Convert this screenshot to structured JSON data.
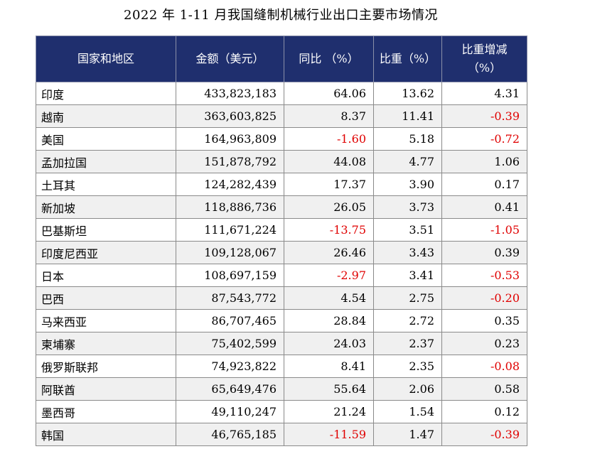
{
  "title": "2022 年 1-11 月我国缝制机械行业出口主要市场情况",
  "headers": [
    "国家和地区",
    "金额（美元）",
    "同比 （%）",
    "比重（%）",
    [
      "比重增减",
      "（%）"
    ]
  ],
  "colors": {
    "header_bg": "#1f2f6e",
    "negative": "#e00000",
    "stripe": "#f0f0f0"
  },
  "rows": [
    {
      "name": "印度",
      "amount": "433,823,183",
      "yoy": "64.06",
      "share": "13.62",
      "change": "4.31"
    },
    {
      "name": "越南",
      "amount": "363,603,825",
      "yoy": "8.37",
      "share": "11.41",
      "change": "-0.39"
    },
    {
      "name": "美国",
      "amount": "164,963,809",
      "yoy": "-1.60",
      "share": "5.18",
      "change": "-0.72"
    },
    {
      "name": "孟加拉国",
      "amount": "151,878,792",
      "yoy": "44.08",
      "share": "4.77",
      "change": "1.06"
    },
    {
      "name": "土耳其",
      "amount": "124,282,439",
      "yoy": "17.37",
      "share": "3.90",
      "change": "0.17"
    },
    {
      "name": "新加坡",
      "amount": "118,886,736",
      "yoy": "26.05",
      "share": "3.73",
      "change": "0.41"
    },
    {
      "name": "巴基斯坦",
      "amount": "111,671,224",
      "yoy": "-13.75",
      "share": "3.51",
      "change": "-1.05"
    },
    {
      "name": "印度尼西亚",
      "amount": "109,128,067",
      "yoy": "26.46",
      "share": "3.43",
      "change": "0.39"
    },
    {
      "name": "日本",
      "amount": "108,697,159",
      "yoy": "-2.97",
      "share": "3.41",
      "change": "-0.53"
    },
    {
      "name": "巴西",
      "amount": "87,543,772",
      "yoy": "4.54",
      "share": "2.75",
      "change": "-0.20"
    },
    {
      "name": "马来西亚",
      "amount": "86,707,465",
      "yoy": "28.84",
      "share": "2.72",
      "change": "0.35"
    },
    {
      "name": "柬埔寨",
      "amount": "75,402,599",
      "yoy": "24.03",
      "share": "2.37",
      "change": "0.23"
    },
    {
      "name": "俄罗斯联邦",
      "amount": "74,923,822",
      "yoy": "8.41",
      "share": "2.35",
      "change": "-0.08"
    },
    {
      "name": "阿联酋",
      "amount": "65,649,476",
      "yoy": "55.64",
      "share": "2.06",
      "change": "0.58"
    },
    {
      "name": "墨西哥",
      "amount": "49,110,247",
      "yoy": "21.24",
      "share": "1.54",
      "change": "0.12"
    },
    {
      "name": "韩国",
      "amount": "46,765,185",
      "yoy": "-11.59",
      "share": "1.47",
      "change": "-0.39"
    }
  ]
}
